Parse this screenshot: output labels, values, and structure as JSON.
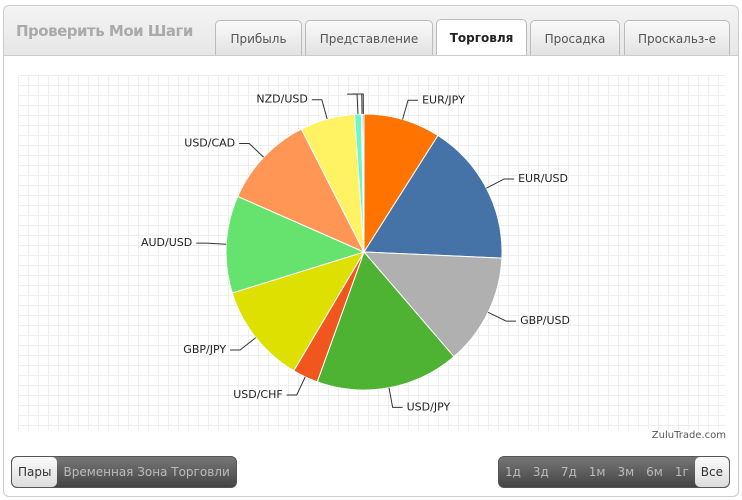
{
  "header": {
    "title": "Проверить Мои Шаги",
    "tabs": [
      "Прибыль",
      "Представление",
      "Торговля",
      "Просадка",
      "Проскальз-е"
    ]
  },
  "chart_data": {
    "type": "pie",
    "categories": [
      "EUR/JPY",
      "EUR/USD",
      "GBP/USD",
      "USD/JPY",
      "USD/CHF",
      "GBP/JPY",
      "AUD/USD",
      "USD/CAD",
      "NZD/USD",
      null,
      null,
      null
    ],
    "values": [
      9,
      16.7,
      13,
      16.8,
      3,
      11.7,
      11.4,
      10.9,
      6.4,
      0.8,
      0.15,
      0.15
    ],
    "colors": [
      "#ff7300",
      "#4572a7",
      "#b0b0b0",
      "#4eb233",
      "#f0561d",
      "#dde000",
      "#66e36e",
      "#ff9655",
      "#fff263",
      "#6af9c4",
      "#4572a7",
      "#aa4643"
    ]
  },
  "watermark": "ZuluTrade.com",
  "footer": {
    "left_buttons": [
      "Пары",
      "Временная Зона Торговли"
    ],
    "right_buttons": [
      "1д",
      "3д",
      "7д",
      "1м",
      "3м",
      "6м",
      "1г",
      "Все"
    ]
  }
}
